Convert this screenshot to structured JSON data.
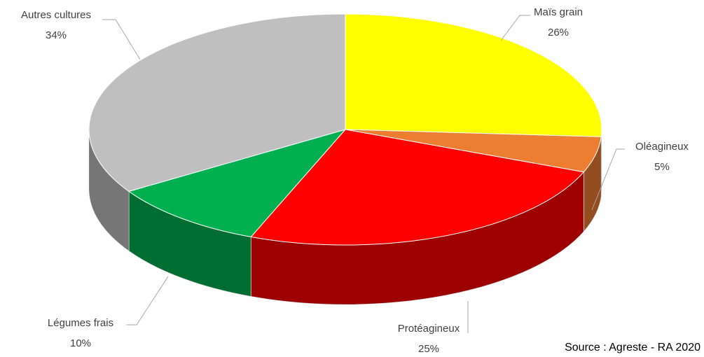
{
  "chart_data": {
    "type": "pie",
    "categories": [
      "Maïs grain",
      "Oléagineux",
      "Protéagineux",
      "Légumes frais",
      "Autres cultures"
    ],
    "values": [
      26,
      5,
      25,
      10,
      34
    ],
    "value_labels": [
      "26%",
      "5%",
      "25%",
      "10%",
      "34%"
    ],
    "colors": [
      "#ffff00",
      "#ed7d31",
      "#ff0000",
      "#00b050",
      "#bfbfbf"
    ],
    "source": "Source : Agreste  - RA 2020"
  }
}
